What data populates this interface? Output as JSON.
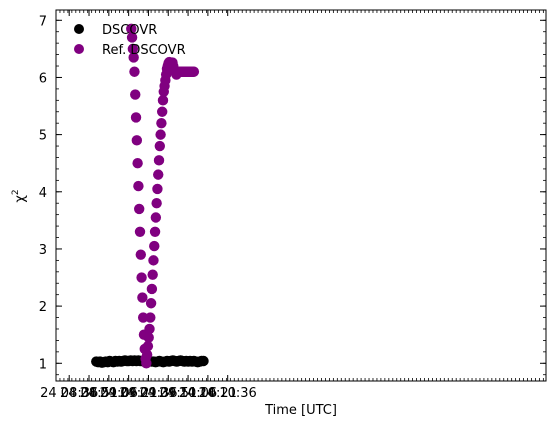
{
  "chart_data": {
    "type": "scatter",
    "title": "",
    "xlabel": "Time [UTC]",
    "ylabel_base": "χ",
    "ylabel_sup": "2",
    "xlim": [
      506,
      877
    ],
    "ylim": [
      0.69,
      7.18
    ],
    "x_unit": "minutes after 24 00:00 UTC",
    "x_ticks": [
      {
        "value": 516,
        "label": "24 08:36"
      },
      {
        "value": 531,
        "label": "24 08:51"
      },
      {
        "value": 546,
        "label": "24 09:06"
      },
      {
        "value": 561,
        "label": "24 09:21"
      },
      {
        "value": 576,
        "label": "24 09:36"
      },
      {
        "value": 591,
        "label": "24 09:51"
      },
      {
        "value": 606,
        "label": "24 10:06"
      },
      {
        "value": 621,
        "label": "24 10:21"
      },
      {
        "value": 636,
        "label": "24 10:36"
      }
    ],
    "y_ticks": [
      {
        "value": 1,
        "label": "1"
      },
      {
        "value": 2,
        "label": "2"
      },
      {
        "value": 3,
        "label": "3"
      },
      {
        "value": 4,
        "label": "4"
      },
      {
        "value": 5,
        "label": "5"
      },
      {
        "value": 6,
        "label": "6"
      },
      {
        "value": 7,
        "label": "7"
      }
    ],
    "legend": {
      "placement": "top-left"
    },
    "series": [
      {
        "name": "DSCOVR",
        "color": "#000000",
        "x": [
          536.5,
          537.9,
          539.4,
          540.8,
          542.3,
          543.7,
          545.2,
          546.6,
          548.1,
          549.5,
          551.0,
          552.4,
          553.9,
          555.3,
          556.8,
          558.2,
          559.7,
          561.1,
          562.6,
          564.0,
          565.5,
          566.9,
          568.4,
          569.8,
          571.3,
          572.7,
          574.2,
          575.6,
          577.1,
          578.5,
          580.0,
          581.4,
          582.9,
          584.3,
          585.8,
          587.2,
          588.7,
          590.1,
          591.6,
          593.0,
          594.5,
          595.9,
          597.4,
          598.8,
          600.3,
          601.7,
          603.2,
          604.6,
          606.1,
          607.5,
          609.0,
          610.4,
          611.9,
          613.3,
          614.8,
          616.2,
          617.7
        ],
        "y": [
          1.03,
          1.02,
          1.03,
          1.01,
          1.02,
          1.03,
          1.02,
          1.04,
          1.03,
          1.02,
          1.04,
          1.03,
          1.04,
          1.03,
          1.04,
          1.05,
          1.04,
          1.04,
          1.05,
          1.04,
          1.05,
          1.04,
          1.05,
          1.04,
          1.04,
          1.03,
          1.04,
          1.05,
          1.04,
          1.03,
          1.03,
          1.02,
          1.03,
          1.04,
          1.03,
          1.02,
          1.03,
          1.04,
          1.03,
          1.04,
          1.05,
          1.04,
          1.03,
          1.04,
          1.05,
          1.04,
          1.03,
          1.04,
          1.03,
          1.04,
          1.03,
          1.04,
          1.03,
          1.02,
          1.03,
          1.04,
          1.04
        ]
      },
      {
        "name": "Ref. DSCOVR",
        "color": "#800080",
        "x": [
          563.0,
          563.6,
          564.2,
          564.8,
          565.4,
          566.0,
          566.6,
          567.2,
          567.8,
          568.4,
          569.0,
          569.6,
          570.2,
          570.8,
          571.4,
          572.0,
          572.6,
          573.2,
          573.8,
          574.4,
          575.0,
          575.6,
          576.2,
          576.8,
          577.4,
          578.0,
          578.6,
          579.2,
          579.8,
          580.4,
          581.0,
          581.6,
          582.2,
          582.8,
          583.4,
          584.0,
          584.6,
          585.2,
          585.8,
          586.4,
          587.0,
          587.6,
          588.2,
          588.8,
          589.4,
          590.0,
          590.6,
          591.2,
          591.8,
          592.4,
          593.0,
          593.6,
          594.2,
          594.8,
          595.4,
          596.0,
          596.6,
          597.2,
          597.8,
          598.4,
          599.0,
          599.6,
          600.2,
          600.8,
          601.4,
          602.0,
          602.6,
          603.2,
          603.8,
          604.4,
          605.0,
          605.6,
          606.2,
          606.8,
          607.4,
          608.0,
          608.6,
          609.2,
          609.8,
          610.4
        ],
        "y": [
          6.85,
          6.7,
          6.5,
          6.35,
          6.1,
          5.7,
          5.3,
          4.9,
          4.5,
          4.1,
          3.7,
          3.3,
          2.9,
          2.5,
          2.15,
          1.8,
          1.5,
          1.25,
          1.08,
          1.0,
          1.15,
          1.3,
          1.45,
          1.6,
          1.8,
          2.05,
          2.3,
          2.55,
          2.8,
          3.05,
          3.3,
          3.55,
          3.8,
          4.05,
          4.3,
          4.55,
          4.8,
          5.0,
          5.2,
          5.4,
          5.6,
          5.75,
          5.85,
          5.95,
          6.05,
          6.15,
          6.2,
          6.25,
          6.27,
          6.25,
          6.2,
          6.22,
          6.26,
          6.2,
          6.12,
          6.1,
          6.08,
          6.05,
          6.08,
          6.1,
          6.1,
          6.1,
          6.1,
          6.1,
          6.1,
          6.1,
          6.1,
          6.1,
          6.1,
          6.1,
          6.1,
          6.1,
          6.1,
          6.1,
          6.1,
          6.1,
          6.1,
          6.1,
          6.1,
          6.1
        ]
      }
    ]
  }
}
